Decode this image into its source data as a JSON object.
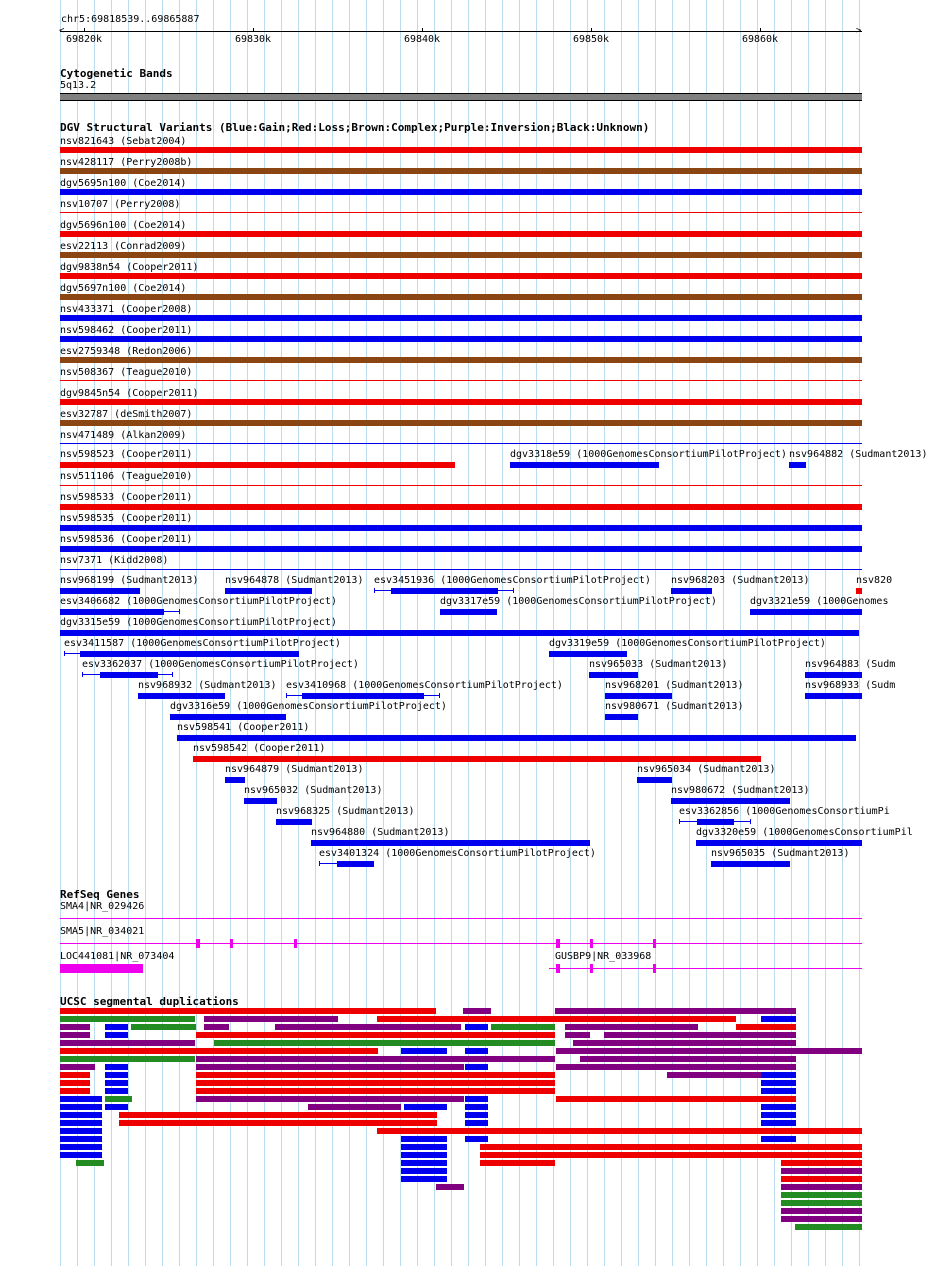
{
  "position": "chr5:69818539..69865887",
  "ruler": {
    "ticks": [
      "69820k",
      "69830k",
      "69840k",
      "69850k",
      "69860k"
    ]
  },
  "cytobands": {
    "title": "Cytogenetic Bands",
    "band": "5q13.2"
  },
  "dgv": {
    "title": "DGV Structural Variants (Blue:Gain;Red:Loss;Brown:Complex;Purple:Inversion;Black:Unknown)",
    "colors": {
      "gain": "#0000ee",
      "loss": "#ee0000",
      "complex": "#8b4513",
      "inversion": "#800080"
    },
    "full_rows": [
      {
        "label": "nsv821643 (Sebat2004)",
        "type": "loss"
      },
      {
        "label": "nsv428117 (Perry2008b)",
        "type": "complex"
      },
      {
        "label": "dgv5695n100 (Coe2014)",
        "type": "gain"
      },
      {
        "label": "nsv10707 (Perry2008)",
        "type": "loss"
      },
      {
        "label": "dgv5696n100 (Coe2014)",
        "type": "loss"
      },
      {
        "label": "esv22113 (Conrad2009)",
        "type": "complex"
      },
      {
        "label": "dgv9838n54 (Cooper2011)",
        "type": "loss"
      },
      {
        "label": "dgv5697n100 (Coe2014)",
        "type": "complex"
      },
      {
        "label": "nsv433371 (Cooper2008)",
        "type": "gain"
      },
      {
        "label": "nsv598462 (Cooper2011)",
        "type": "gain"
      },
      {
        "label": "esv2759348 (Redon2006)",
        "type": "complex"
      },
      {
        "label": "nsv508367 (Teague2010)",
        "type": "loss"
      },
      {
        "label": "dgv9845n54 (Cooper2011)",
        "type": "loss"
      },
      {
        "label": "esv32787 (deSmith2007)",
        "type": "complex"
      },
      {
        "label": "nsv471489 (Alkan2009)",
        "type": "gain"
      }
    ],
    "row15": [
      {
        "label": "nsv598523 (Cooper2011)",
        "type": "loss"
      },
      {
        "label": "dgv3318e59 (1000GenomesConsortiumPilotProject)",
        "type": "gain"
      },
      {
        "label": "nsv964882 (Sudmant2013)",
        "type": "gain"
      }
    ],
    "full_rows_b": [
      {
        "label": "nsv511106 (Teague2010)",
        "type": "loss"
      },
      {
        "label": "nsv598533 (Cooper2011)",
        "type": "loss"
      },
      {
        "label": "nsv598535 (Cooper2011)",
        "type": "gain"
      },
      {
        "label": "nsv598536 (Cooper2011)",
        "type": "gain"
      },
      {
        "label": "nsv7371 (Kidd2008)",
        "type": "gain"
      }
    ],
    "packed": [
      {
        "label": "nsv968199 (Sudmant2013)",
        "type": "gain"
      },
      {
        "label": "nsv964878 (Sudmant2013)",
        "type": "gain"
      },
      {
        "label": "esv3451936 (1000GenomesConsortiumPilotProject)",
        "type": "gain"
      },
      {
        "label": "nsv968203 (Sudmant2013)",
        "type": "gain"
      },
      {
        "label": "nsv820",
        "type": "loss"
      },
      {
        "label": "esv3406682 (1000GenomesConsortiumPilotProject)",
        "type": "gain"
      },
      {
        "label": "dgv3317e59 (1000GenomesConsortiumPilotProject)",
        "type": "gain"
      },
      {
        "label": "dgv3321e59 (1000Genomes",
        "type": "gain"
      },
      {
        "label": "dgv3315e59 (1000GenomesConsortiumPilotProject)",
        "type": "gain"
      },
      {
        "label": "esv3411587 (1000GenomesConsortiumPilotProject)",
        "type": "gain"
      },
      {
        "label": "dgv3319e59 (1000GenomesConsortiumPilotProject)",
        "type": "gain"
      },
      {
        "label": "esv3362037 (1000GenomesConsortiumPilotProject)",
        "type": "gain"
      },
      {
        "label": "nsv965033 (Sudmant2013)",
        "type": "gain"
      },
      {
        "label": "nsv964883 (Sudm",
        "type": "gain"
      },
      {
        "label": "nsv968932 (Sudmant2013)",
        "type": "gain"
      },
      {
        "label": "esv3410968 (1000GenomesConsortiumPilotProject)",
        "type": "gain"
      },
      {
        "label": "nsv968201 (Sudmant2013)",
        "type": "gain"
      },
      {
        "label": "nsv968933 (Sudm",
        "type": "gain"
      },
      {
        "label": "dgv3316e59 (1000GenomesConsortiumPilotProject)",
        "type": "gain"
      },
      {
        "label": "nsv980671 (Sudmant2013)",
        "type": "gain"
      },
      {
        "label": "nsv598541 (Cooper2011)",
        "type": "gain"
      },
      {
        "label": "nsv598542 (Cooper2011)",
        "type": "loss"
      },
      {
        "label": "nsv964879 (Sudmant2013)",
        "type": "gain"
      },
      {
        "label": "nsv965034 (Sudmant2013)",
        "type": "gain"
      },
      {
        "label": "nsv965032 (Sudmant2013)",
        "type": "gain"
      },
      {
        "label": "nsv980672 (Sudmant2013)",
        "type": "gain"
      },
      {
        "label": "nsv968325 (Sudmant2013)",
        "type": "gain"
      },
      {
        "label": "esv3362856 (1000GenomesConsortiumPi",
        "type": "gain"
      },
      {
        "label": "nsv964880 (Sudmant2013)",
        "type": "gain"
      },
      {
        "label": "dgv3320e59 (1000GenomesConsortiumPil",
        "type": "gain"
      },
      {
        "label": "esv3401324 (1000GenomesConsortiumPilotProject)",
        "type": "gain"
      },
      {
        "label": "nsv965035 (Sudmant2013)",
        "type": "gain"
      }
    ]
  },
  "refseq": {
    "title": "RefSeq Genes",
    "genes": [
      "SMA4|NR_029426",
      "SMA5|NR_034021",
      "LOC441081|NR_073404",
      "GUSBP9|NR_033968"
    ]
  },
  "segdup": {
    "title": "UCSC segmental duplications",
    "colors": {
      "red": "#ee0000",
      "blue": "#0000ee",
      "green": "#228b22",
      "purple": "#800080"
    }
  }
}
